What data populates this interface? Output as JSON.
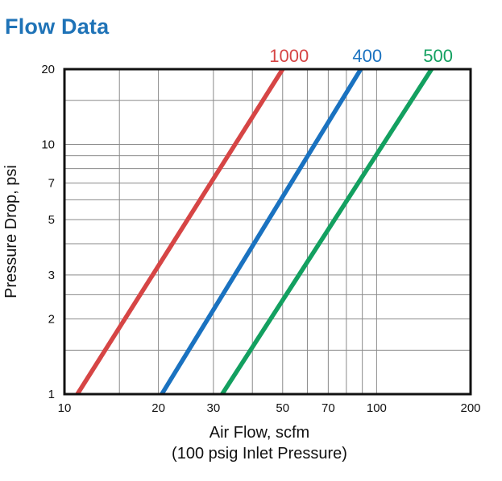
{
  "title": "Flow Data",
  "chart_data": {
    "type": "line",
    "title": "Flow Data",
    "xlabel": "Air Flow, scfm",
    "xlabel_sub": "(100 psig Inlet Pressure)",
    "ylabel": "Pressure Drop, psi",
    "xscale": "log",
    "yscale": "log",
    "xlim": [
      10,
      200
    ],
    "ylim": [
      1,
      20
    ],
    "grid": true,
    "x_ticks": [
      10,
      20,
      30,
      50,
      70,
      100,
      200
    ],
    "y_ticks": [
      1,
      2,
      3,
      5,
      7,
      10,
      20
    ],
    "x_grid": [
      15,
      20,
      30,
      40,
      50,
      60,
      70,
      80,
      90,
      100
    ],
    "y_grid": [
      1.5,
      2,
      2.5,
      3,
      4,
      5,
      6,
      7,
      8,
      9,
      10,
      15
    ],
    "series": [
      {
        "name": "1000",
        "color": "#d64545",
        "x": [
          11,
          50
        ],
        "y": [
          1,
          20
        ]
      },
      {
        "name": "400",
        "color": "#1a72c0",
        "x": [
          20.5,
          89
        ],
        "y": [
          1,
          20
        ]
      },
      {
        "name": "500",
        "color": "#13a060",
        "x": [
          32,
          150
        ],
        "y": [
          1,
          20
        ]
      }
    ]
  }
}
